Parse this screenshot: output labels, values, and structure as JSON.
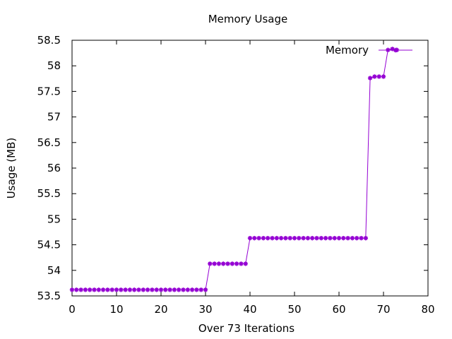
{
  "chart_data": {
    "type": "line",
    "title": "Memory Usage",
    "xlabel": "Over 73 Iterations",
    "ylabel": "Usage (MB)",
    "xlim": [
      0,
      80
    ],
    "ylim": [
      53.5,
      58.5
    ],
    "xticks": [
      0,
      10,
      20,
      30,
      40,
      50,
      60,
      70,
      80
    ],
    "xtick_labels": [
      "0",
      "10",
      "20",
      "30",
      "40",
      "50",
      "60",
      "70",
      "80"
    ],
    "yticks": [
      53.5,
      54,
      54.5,
      55,
      55.5,
      56,
      56.5,
      57,
      57.5,
      58,
      58.5
    ],
    "ytick_labels": [
      "53.5",
      "54",
      "54.5",
      "55",
      "55.5",
      "56",
      "56.5",
      "57",
      "57.5",
      "58",
      "58.5"
    ],
    "grid": false,
    "legend_position": "top-right",
    "series": [
      {
        "name": "Memory",
        "color": "#9400d3",
        "x": [
          0,
          1,
          2,
          3,
          4,
          5,
          6,
          7,
          8,
          9,
          10,
          11,
          12,
          13,
          14,
          15,
          16,
          17,
          18,
          19,
          20,
          21,
          22,
          23,
          24,
          25,
          26,
          27,
          28,
          29,
          30,
          31,
          32,
          33,
          34,
          35,
          36,
          37,
          38,
          39,
          40,
          41,
          42,
          43,
          44,
          45,
          46,
          47,
          48,
          49,
          50,
          51,
          52,
          53,
          54,
          55,
          56,
          57,
          58,
          59,
          60,
          61,
          62,
          63,
          64,
          65,
          66,
          67,
          68,
          69,
          70,
          71,
          72,
          73
        ],
        "values": [
          53.62,
          53.62,
          53.62,
          53.62,
          53.62,
          53.62,
          53.62,
          53.62,
          53.62,
          53.62,
          53.62,
          53.62,
          53.62,
          53.62,
          53.62,
          53.62,
          53.62,
          53.62,
          53.62,
          53.62,
          53.62,
          53.62,
          53.62,
          53.62,
          53.62,
          53.62,
          53.62,
          53.62,
          53.62,
          53.62,
          53.62,
          54.13,
          54.13,
          54.13,
          54.13,
          54.13,
          54.13,
          54.13,
          54.13,
          54.13,
          54.63,
          54.63,
          54.63,
          54.63,
          54.63,
          54.63,
          54.63,
          54.63,
          54.63,
          54.63,
          54.63,
          54.63,
          54.63,
          54.63,
          54.63,
          54.63,
          54.63,
          54.63,
          54.63,
          54.63,
          54.63,
          54.63,
          54.63,
          54.63,
          54.63,
          54.63,
          54.63,
          57.76,
          57.79,
          57.79,
          57.79,
          58.31,
          58.33,
          58.31
        ]
      }
    ]
  }
}
